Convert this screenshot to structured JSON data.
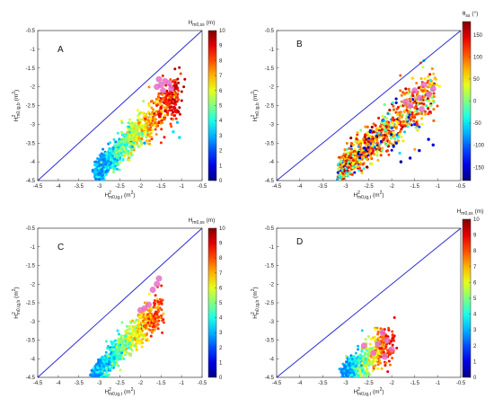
{
  "chart_data": [
    {
      "panel": "A",
      "type": "scatter",
      "xlabel": "H",
      "xlabel_sup": "2",
      "xlabel_sub": "m0,ig,t",
      "xlabel_unit": "(m",
      "xlabel_unit_sup": "2",
      "xlabel_unit_end": ")",
      "ylabel": "H",
      "ylabel_sup": "2",
      "ylabel_sub": "m0,ig,b",
      "ylabel_unit": "(m",
      "ylabel_unit_sup": "2",
      "ylabel_unit_end": ")",
      "xlim": [
        -4.5,
        -0.5
      ],
      "ylim": [
        -4.5,
        -0.5
      ],
      "xticks": [
        "-4.5",
        "-4",
        "-3.5",
        "-3",
        "-2.5",
        "-2",
        "-1.5",
        "-1",
        "-0.5"
      ],
      "yticks": [
        "-0.5",
        "-1",
        "-1.5",
        "-2",
        "-2.5",
        "-3",
        "-3.5",
        "-4",
        "-4.5"
      ],
      "reference_line": {
        "from": [
          -4.5,
          -4.5
        ],
        "to": [
          -0.5,
          -0.5
        ],
        "color": "#2b2bd6"
      },
      "colorbar": {
        "title": "H",
        "title_sub": "m0,ss",
        "title_unit": "(m)",
        "range": [
          0,
          10
        ],
        "ticks": [
          "10",
          "9",
          "8",
          "7",
          "6",
          "5",
          "4",
          "3",
          "2",
          "1",
          "0"
        ],
        "colormap": "jet"
      },
      "cloud": {
        "x_range": [
          -3.05,
          -1.05
        ],
        "slope": 1.05,
        "intercept_at": [
          -3.0,
          -4.2
        ],
        "spread": 0.28,
        "color_range": [
          2.5,
          9.5
        ],
        "count": 1200
      },
      "highlighted_points": [
        {
          "x": -1.6,
          "y": -2.0
        },
        {
          "x": -1.5,
          "y": -1.95
        },
        {
          "x": -1.4,
          "y": -1.85
        },
        {
          "x": -1.3,
          "y": -1.9
        },
        {
          "x": -1.45,
          "y": -2.1
        },
        {
          "x": -1.55,
          "y": -1.8
        },
        {
          "x": -1.25,
          "y": -2.05
        }
      ],
      "outlier_points": [
        {
          "x": -1.2,
          "y": -3.2,
          "c": 3.5
        },
        {
          "x": -1.1,
          "y": -2.95,
          "c": 3.2
        },
        {
          "x": -1.05,
          "y": -3.35,
          "c": 3.4
        },
        {
          "x": -2.2,
          "y": -3.6,
          "c": 3.0
        },
        {
          "x": -1.9,
          "y": -3.5,
          "c": 2.8
        }
      ]
    },
    {
      "panel": "B",
      "type": "scatter",
      "xlabel": "H",
      "xlabel_sup": "2",
      "xlabel_sub": "m0,ig,t",
      "xlabel_unit": "(m",
      "xlabel_unit_sup": "2",
      "xlabel_unit_end": ")",
      "ylabel": "H",
      "ylabel_sup": "2",
      "ylabel_sub": "m0,ig,b",
      "ylabel_unit": "(m",
      "ylabel_unit_sup": "2",
      "ylabel_unit_end": ")",
      "xlim": [
        -4.5,
        -0.5
      ],
      "ylim": [
        -4.5,
        -0.5
      ],
      "xticks": [
        "-4.5",
        "-4",
        "-3.5",
        "-3",
        "-2.5",
        "-2",
        "-1.5",
        "-1",
        "-0.5"
      ],
      "yticks": [
        "-0.5",
        "-1",
        "-1.5",
        "-2",
        "-2.5",
        "-3",
        "-3.5",
        "-4",
        "-4.5"
      ],
      "reference_line": {
        "from": [
          -4.5,
          -4.5
        ],
        "to": [
          -0.5,
          -0.5
        ],
        "color": "#2b2bd6"
      },
      "colorbar": {
        "title": "θ",
        "title_sub": "ss",
        "title_unit": "(°)",
        "range": [
          -180,
          180
        ],
        "ticks": [
          "150",
          "100",
          "50",
          "0",
          "-50",
          "-100",
          "-150"
        ],
        "colormap": "jet"
      },
      "cloud": {
        "x_range": [
          -3.1,
          -1.05
        ],
        "slope": 1.05,
        "intercept_at": [
          -3.0,
          -4.1
        ],
        "spread": 0.35,
        "color_range": [
          60,
          170
        ],
        "count": 1400
      },
      "highlighted_points": [
        {
          "x": -1.5,
          "y": -2.1
        },
        {
          "x": -1.3,
          "y": -1.95
        },
        {
          "x": -1.2,
          "y": -2.2
        },
        {
          "x": -1.4,
          "y": -2.3
        },
        {
          "x": -1.1,
          "y": -2.05
        },
        {
          "x": -1.6,
          "y": -2.5
        },
        {
          "x": -1.7,
          "y": -2.4
        },
        {
          "x": -1.35,
          "y": -2.6
        }
      ],
      "outlier_points": [
        {
          "x": -1.2,
          "y": -3.4,
          "c": -150
        },
        {
          "x": -1.4,
          "y": -3.7,
          "c": -160
        },
        {
          "x": -1.1,
          "y": -3.55,
          "c": -140
        },
        {
          "x": -1.6,
          "y": -3.9,
          "c": -155
        },
        {
          "x": -1.9,
          "y": -3.5,
          "c": -130
        },
        {
          "x": -2.0,
          "y": -3.1,
          "c": -100
        },
        {
          "x": -1.5,
          "y": -3.0,
          "c": -120
        },
        {
          "x": -2.2,
          "y": -2.9,
          "c": -90
        },
        {
          "x": -1.8,
          "y": -4.0,
          "c": -170
        },
        {
          "x": -1.3,
          "y": -1.3,
          "c": -60
        }
      ]
    },
    {
      "panel": "C",
      "type": "scatter",
      "xlabel": "H",
      "xlabel_sup": "2",
      "xlabel_sub": "m0,ig,t",
      "xlabel_unit": "(m",
      "xlabel_unit_sup": "2",
      "xlabel_unit_end": ")",
      "ylabel": "H",
      "ylabel_sup": "2",
      "ylabel_sub": "m0,ig,b",
      "ylabel_unit": "(m",
      "ylabel_unit_sup": "2",
      "ylabel_unit_end": ")",
      "xlim": [
        -4.5,
        -0.5
      ],
      "ylim": [
        -4.5,
        -0.5
      ],
      "xticks": [
        "-4.5",
        "-4",
        "-3.5",
        "-3",
        "-2.5",
        "-2",
        "-1.5",
        "-1",
        "-0.5"
      ],
      "yticks": [
        "-0.5",
        "-1",
        "-1.5",
        "-2",
        "-2.5",
        "-3",
        "-3.5",
        "-4",
        "-4.5"
      ],
      "reference_line": {
        "from": [
          -4.5,
          -4.5
        ],
        "to": [
          -0.5,
          -0.5
        ],
        "color": "#2b2bd6"
      },
      "colorbar": {
        "title": "H",
        "title_sub": "m0,ss",
        "title_unit": "(m)",
        "range": [
          0,
          10
        ],
        "ticks": [
          "10",
          "9",
          "8",
          "7",
          "6",
          "5",
          "4",
          "3",
          "2",
          "1",
          "0"
        ],
        "colormap": "jet"
      },
      "cloud": {
        "x_range": [
          -3.1,
          -1.5
        ],
        "slope": 1.1,
        "intercept_at": [
          -3.0,
          -4.3
        ],
        "spread": 0.25,
        "color_range": [
          2.5,
          8.5
        ],
        "count": 1000
      },
      "highlighted_points": [
        {
          "x": -1.6,
          "y": -2.0
        },
        {
          "x": -1.55,
          "y": -1.85
        },
        {
          "x": -1.7,
          "y": -2.15
        },
        {
          "x": -1.8,
          "y": -2.55
        },
        {
          "x": -1.9,
          "y": -2.65
        },
        {
          "x": -2.0,
          "y": -2.7
        }
      ],
      "outlier_points": []
    },
    {
      "panel": "D",
      "type": "scatter",
      "xlabel": "H",
      "xlabel_sup": "2",
      "xlabel_sub": "m0,ig,t",
      "xlabel_unit": "(m",
      "xlabel_unit_sup": "2",
      "xlabel_unit_end": ")",
      "ylabel": "H",
      "ylabel_sup": "2",
      "ylabel_sub": "m0,ig,b",
      "ylabel_unit": "(m",
      "ylabel_unit_sup": "2",
      "ylabel_unit_end": ")",
      "xlim": [
        -4.5,
        -0.5
      ],
      "ylim": [
        -4.5,
        -0.5
      ],
      "xticks": [
        "-4.5",
        "-4",
        "-3.5",
        "-3",
        "-2.5",
        "-2",
        "-1.5",
        "-1",
        "-0.5"
      ],
      "yticks": [
        "-0.5",
        "-1",
        "-1.5",
        "-2",
        "-2.5",
        "-3",
        "-3.5",
        "-4",
        "-4.5"
      ],
      "reference_line": {
        "from": [
          -4.5,
          -4.5
        ],
        "to": [
          -0.5,
          -0.5
        ],
        "color": "#2b2bd6"
      },
      "colorbar": {
        "title": "H",
        "title_sub": "m0,ss",
        "title_unit": "(m)",
        "range": [
          0,
          10
        ],
        "ticks": [
          "10",
          "9",
          "8",
          "7",
          "6",
          "5",
          "4",
          "3",
          "2",
          "1",
          "0"
        ],
        "colormap": "jet"
      },
      "cloud": {
        "x_range": [
          -3.0,
          -2.0
        ],
        "slope": 0.9,
        "intercept_at": [
          -3.0,
          -4.4
        ],
        "spread": 0.3,
        "color_range": [
          2.5,
          9.0
        ],
        "count": 600
      },
      "highlighted_points": [
        {
          "x": -2.3,
          "y": -3.6
        },
        {
          "x": -2.1,
          "y": -3.5
        },
        {
          "x": -2.0,
          "y": -3.75
        },
        {
          "x": -2.4,
          "y": -3.85
        },
        {
          "x": -2.2,
          "y": -3.3
        },
        {
          "x": -2.6,
          "y": -3.65
        },
        {
          "x": -2.15,
          "y": -3.95
        }
      ],
      "outlier_points": []
    }
  ]
}
